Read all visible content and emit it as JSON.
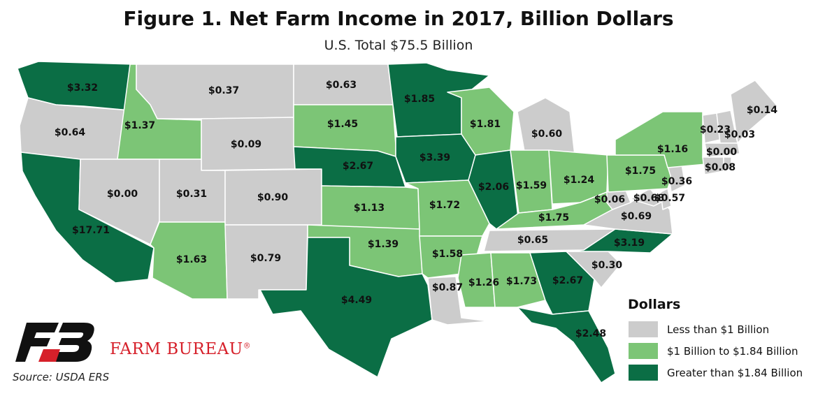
{
  "title": "Figure 1. Net Farm Income in 2017, Billion Dollars",
  "subtitle": "U.S. Total $75.5 Billion",
  "legend": {
    "title": "Dollars",
    "items": [
      {
        "label": "Less than $1 Billion",
        "color": "#cccccc"
      },
      {
        "label": "$1 Billion to $1.84 Billion",
        "color": "#7cc576"
      },
      {
        "label": "Greater than $1.84 Billion",
        "color": "#0b6e45"
      }
    ]
  },
  "states": [
    {
      "id": "WA",
      "label": "$3.32",
      "value": 3.32
    },
    {
      "id": "OR",
      "label": "$0.64",
      "value": 0.64
    },
    {
      "id": "CA",
      "label": "$17.71",
      "value": 17.71
    },
    {
      "id": "ID",
      "label": "$1.37",
      "value": 1.37
    },
    {
      "id": "NV",
      "label": "$0.00",
      "value": 0.0
    },
    {
      "id": "MT",
      "label": "$0.37",
      "value": 0.37
    },
    {
      "id": "WY",
      "label": "$0.09",
      "value": 0.09
    },
    {
      "id": "UT",
      "label": "$0.31",
      "value": 0.31
    },
    {
      "id": "AZ",
      "label": "$1.63",
      "value": 1.63
    },
    {
      "id": "CO",
      "label": "$0.90",
      "value": 0.9
    },
    {
      "id": "NM",
      "label": "$0.79",
      "value": 0.79
    },
    {
      "id": "ND",
      "label": "$0.63",
      "value": 0.63
    },
    {
      "id": "SD",
      "label": "$1.45",
      "value": 1.45
    },
    {
      "id": "NE",
      "label": "$2.67",
      "value": 2.67
    },
    {
      "id": "KS",
      "label": "$1.13",
      "value": 1.13
    },
    {
      "id": "OK",
      "label": "$1.39",
      "value": 1.39
    },
    {
      "id": "TX",
      "label": "$4.49",
      "value": 4.49
    },
    {
      "id": "MN",
      "label": "$1.85",
      "value": 1.85
    },
    {
      "id": "IA",
      "label": "$3.39",
      "value": 3.39
    },
    {
      "id": "MO",
      "label": "$1.72",
      "value": 1.72
    },
    {
      "id": "AR",
      "label": "$1.58",
      "value": 1.58
    },
    {
      "id": "LA",
      "label": "$0.87",
      "value": 0.87
    },
    {
      "id": "WI",
      "label": "$1.81",
      "value": 1.81
    },
    {
      "id": "IL",
      "label": "$2.06",
      "value": 2.06
    },
    {
      "id": "MI",
      "label": "$0.60",
      "value": 0.6
    },
    {
      "id": "IN",
      "label": "$1.59",
      "value": 1.59
    },
    {
      "id": "OH",
      "label": "$1.24",
      "value": 1.24
    },
    {
      "id": "KY",
      "label": "$1.75",
      "value": 1.75
    },
    {
      "id": "TN",
      "label": "$0.65",
      "value": 0.65
    },
    {
      "id": "MS",
      "label": "$1.26",
      "value": 1.26
    },
    {
      "id": "AL",
      "label": "$1.73",
      "value": 1.73
    },
    {
      "id": "GA",
      "label": "$2.67",
      "value": 2.67
    },
    {
      "id": "FL",
      "label": "$2.48",
      "value": 2.48
    },
    {
      "id": "SC",
      "label": "$0.30",
      "value": 0.3
    },
    {
      "id": "NC",
      "label": "$3.19",
      "value": 3.19
    },
    {
      "id": "VA",
      "label": "$0.69",
      "value": 0.69
    },
    {
      "id": "WV",
      "label": "$0.06",
      "value": 0.06
    },
    {
      "id": "MD",
      "label": "$0.68",
      "value": 0.68
    },
    {
      "id": "DE",
      "label": "$0.57",
      "value": 0.57
    },
    {
      "id": "NJ",
      "label": "$0.36",
      "value": 0.36
    },
    {
      "id": "PA",
      "label": "$1.75",
      "value": 1.75
    },
    {
      "id": "NY",
      "label": "$1.16",
      "value": 1.16
    },
    {
      "id": "VT",
      "label": "$0.23",
      "value": 0.23
    },
    {
      "id": "NH",
      "label": "$0.03",
      "value": 0.03
    },
    {
      "id": "ME",
      "label": "$0.14",
      "value": 0.14
    },
    {
      "id": "MA",
      "label": "$0.00",
      "value": 0.0
    },
    {
      "id": "CT",
      "label": "$0.08",
      "value": 0.08
    },
    {
      "id": "RI",
      "label": "",
      "value": null
    }
  ],
  "logo": {
    "brand": "FARM BUREAU",
    "mark": "®",
    "color": "#d6202a"
  },
  "source": "Source: USDA ERS"
}
